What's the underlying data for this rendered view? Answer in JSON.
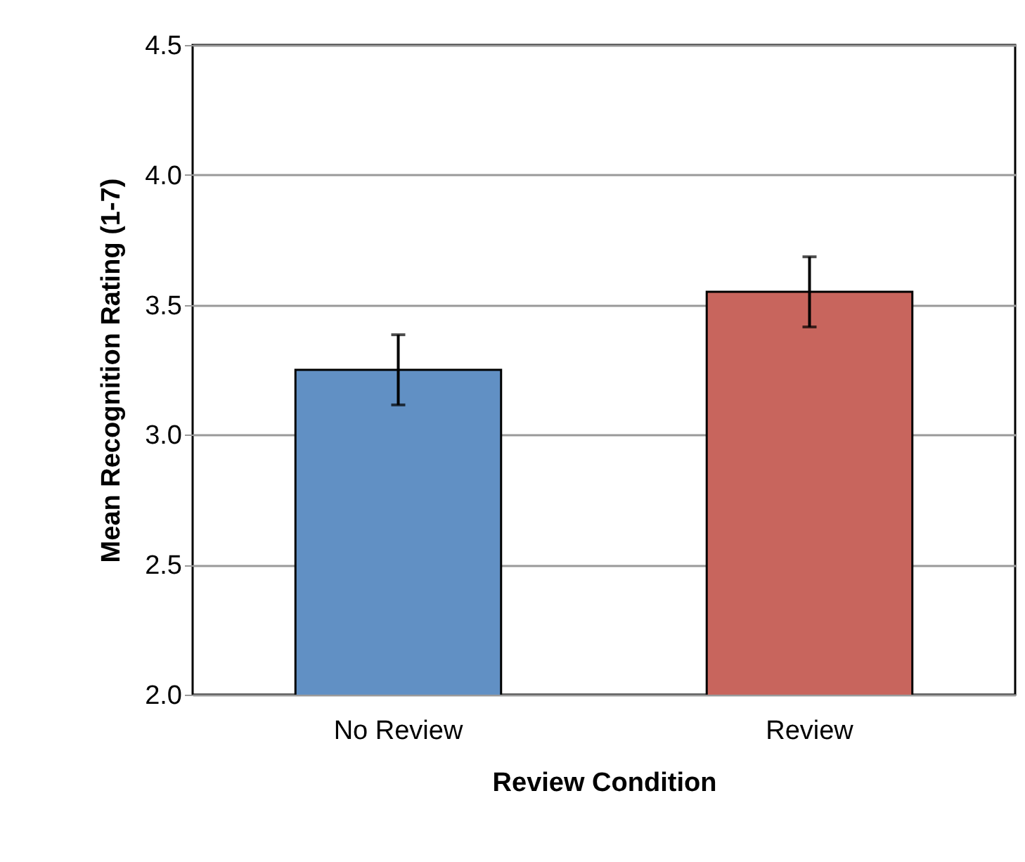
{
  "chart_data": {
    "type": "bar",
    "xlabel": "Review Condition",
    "ylabel": "Mean Recognition Rating (1-7)",
    "categories": [
      "No Review",
      "Review"
    ],
    "values": [
      3.25,
      3.55
    ],
    "colors": [
      "#6190c4",
      "#c8655d"
    ],
    "errors": [
      0.135,
      0.135
    ],
    "ylim": [
      2.0,
      4.5
    ],
    "yticks": [
      {
        "value": 2,
        "label": "2.0"
      },
      {
        "value": 2.5,
        "label": "2.5"
      },
      {
        "value": 3,
        "label": "3.0"
      },
      {
        "value": 3.5,
        "label": "3.5"
      },
      {
        "value": 4,
        "label": "4.0"
      },
      {
        "value": 4.5,
        "label": "4.5"
      }
    ],
    "grid": "y"
  }
}
